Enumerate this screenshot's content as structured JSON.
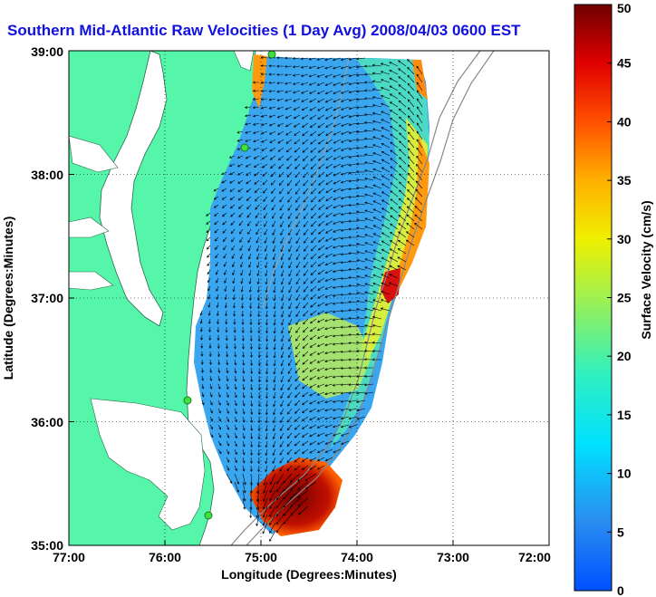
{
  "title": "Southern Mid-Atlantic Raw Velocities (1 Day Avg) 2008/04/03 0600 EST",
  "map": {
    "xlabel": "Longitude (Degrees:Minutes)",
    "ylabel": "Latitude (Degrees:Minutes)",
    "x_ticks": [
      "77:00",
      "76:00",
      "75:00",
      "74:00",
      "73:00",
      "72:00"
    ],
    "y_ticks": [
      "39:00",
      "38:00",
      "37:00",
      "36:00",
      "35:00"
    ],
    "lon_range": [
      -77,
      -72
    ],
    "lat_range": [
      35,
      39
    ],
    "grid": "dotted",
    "land_color": "#55f5aa",
    "field_variable": "surface current speed (cm/s)",
    "stations": [
      {
        "lon": -75.1,
        "lat": 39.0
      },
      {
        "lon": -75.15,
        "lat": 38.22
      },
      {
        "lon": -75.7,
        "lat": 36.18
      },
      {
        "lon": -75.5,
        "lat": 35.24
      }
    ]
  },
  "colorbar": {
    "label": "Surface Velocity (cm/s)",
    "ticks": [
      "0",
      "5",
      "10",
      "15",
      "20",
      "25",
      "30",
      "35",
      "40",
      "45",
      "50"
    ],
    "range": [
      0,
      50
    ]
  }
}
